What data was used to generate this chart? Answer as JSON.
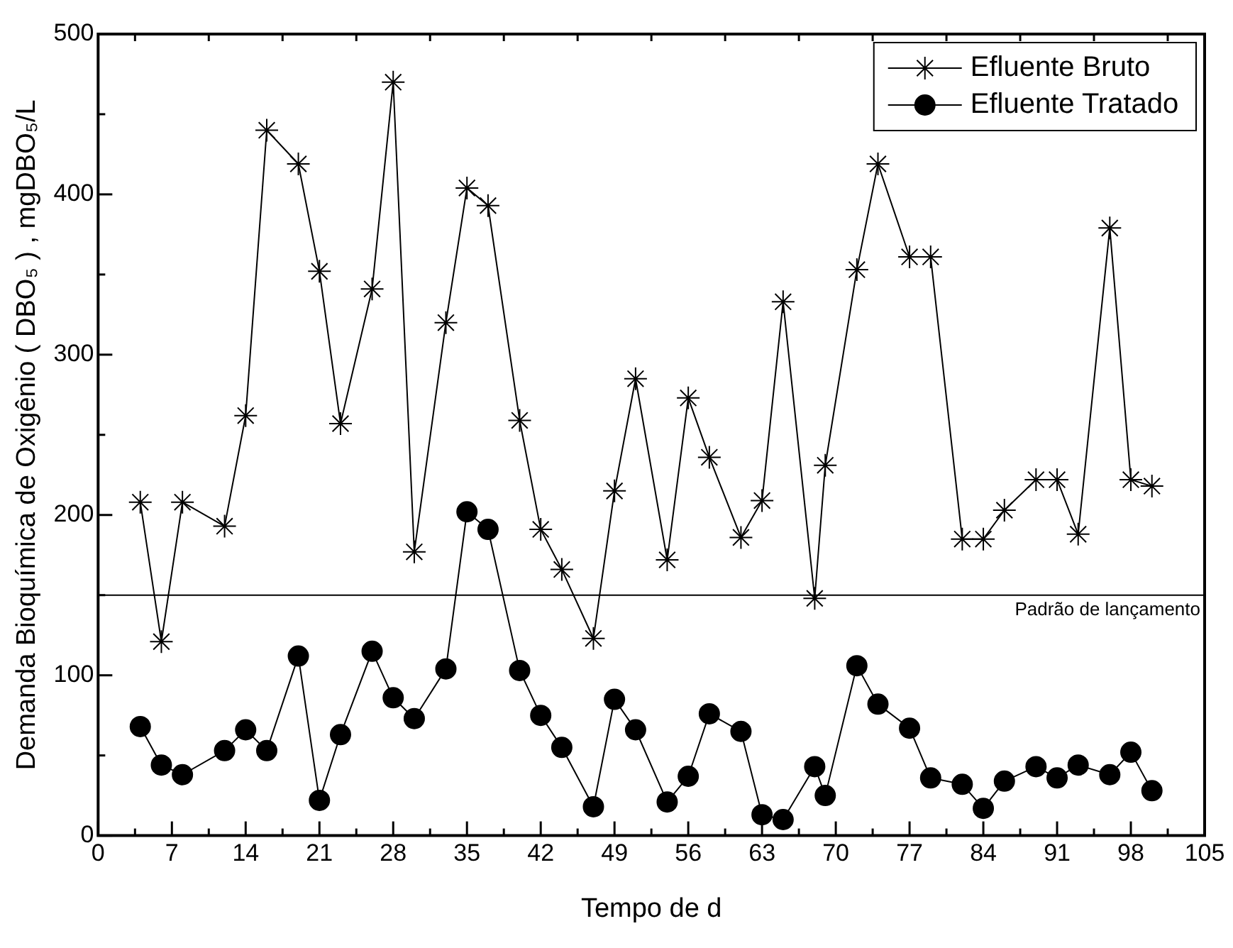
{
  "chart_data": {
    "type": "line",
    "xlabel": "Tempo de d",
    "ylabel": "Demanda Bioquímica de Oxigênio ( DBO₅ ) , mgDBO₅/L",
    "x": [
      4,
      6,
      8,
      12,
      14,
      16,
      19,
      21,
      23,
      26,
      28,
      30,
      33,
      35,
      37,
      40,
      42,
      44,
      47,
      49,
      51,
      54,
      56,
      58,
      61,
      63,
      65,
      68,
      69,
      72,
      74,
      77,
      79,
      82,
      84,
      86,
      89,
      91,
      93,
      96,
      98,
      100
    ],
    "series": [
      {
        "name": "Efluente Bruto",
        "color": "#000000",
        "marker": "cross",
        "values": [
          208,
          121,
          208,
          193,
          262,
          440,
          419,
          352,
          257,
          341,
          470,
          177,
          320,
          404,
          393,
          259,
          191,
          166,
          123,
          215,
          285,
          172,
          273,
          236,
          186,
          209,
          333,
          148,
          231,
          353,
          419,
          361,
          361,
          185,
          185,
          203,
          222,
          222,
          188,
          379,
          222,
          218
        ]
      },
      {
        "name": "Efluente Tratado",
        "color": "#000000",
        "marker": "circle",
        "values": [
          68,
          44,
          38,
          53,
          66,
          53,
          112,
          22,
          63,
          115,
          86,
          73,
          104,
          202,
          191,
          103,
          75,
          55,
          18,
          85,
          66,
          21,
          37,
          76,
          65,
          13,
          10,
          43,
          25,
          106,
          82,
          67,
          36,
          32,
          17,
          34,
          43,
          36,
          44,
          38,
          52,
          28
        ]
      }
    ],
    "xlim": [
      0,
      105
    ],
    "xticks": [
      0,
      7,
      14,
      21,
      28,
      35,
      42,
      49,
      56,
      63,
      70,
      77,
      84,
      91,
      98,
      105
    ],
    "ylim": [
      0,
      500
    ],
    "yticks": [
      0,
      100,
      200,
      300,
      400,
      500
    ],
    "ref_lines": [
      {
        "axis": "y",
        "value": 150,
        "label": "Padrão de lançamento",
        "color": "#000000"
      }
    ],
    "grid": false,
    "legend": "top right",
    "line_style": "solid"
  }
}
